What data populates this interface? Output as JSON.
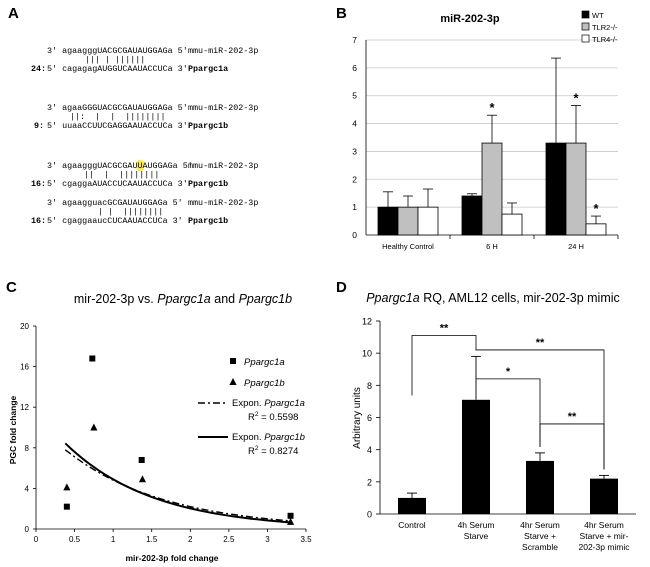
{
  "panels": {
    "a": "A",
    "b": "B",
    "c": "C",
    "d": "D"
  },
  "alignments": [
    {
      "top": "3' agaagggUACGCGAUAUGGAGa 5'",
      "mirna": "mmu-miR-202-3p",
      "pairs": "||| | ||||||",
      "score": "24:",
      "bottom": "5' cagagagAUGGUCAAUACCUCa 3'",
      "gene": "Ppargc1a"
    },
    {
      "top": "3' agaaGGGUACGCGAUAUGGAGa 5'",
      "mirna": "mmu-miR-202-3p",
      "pairs": "||:  |  |  ||||||||",
      "score": "9:",
      "bottom": "5' uuaaCCUUCGAGGAAUACCUCa 3'",
      "gene": "Ppargc1b"
    },
    {
      "top": "3' agaagggUACGCGA",
      "hl": "U",
      "top_rest": "UAUGGAGa 5'",
      "mirna": "mmu-miR-202-3p",
      "pairs": "||  |  ||||||||",
      "score": "16:",
      "bottom": "5' cgaggaAUACCUCAAUACCUCa 3'",
      "gene": "Ppargc1b"
    },
    {
      "top": "3' agaagguacGCGAUAUGGAGa 5'",
      "mirna": "mmu-miR-202-3p",
      "pairs": "| |  ||||||||",
      "score": "16:",
      "bottom": "5' cgaggaaucCUCAAUACCUCa 3'",
      "gene": "Ppargc1b"
    }
  ],
  "chart_data": [
    {
      "id": "B",
      "type": "bar",
      "title": "miR-202-3p",
      "categories": [
        "Healthy Control",
        "6 H",
        "24 H"
      ],
      "series": [
        {
          "name": "WT",
          "color": "#000000",
          "values": [
            1.0,
            1.4,
            3.3
          ],
          "err": [
            0.55,
            0.08,
            3.05
          ]
        },
        {
          "name": "TLR2-/-",
          "color": "#c0c0c0",
          "values": [
            1.0,
            3.3,
            3.3
          ],
          "err": [
            0.4,
            1.0,
            1.35
          ]
        },
        {
          "name": "TLR4-/-",
          "color": "#ffffff",
          "values": [
            1.0,
            0.75,
            0.4
          ],
          "err": [
            0.65,
            0.4,
            0.28
          ]
        }
      ],
      "significance": [
        {
          "category": 1,
          "series": 1,
          "label": "*"
        },
        {
          "category": 2,
          "series": 1,
          "label": "*"
        },
        {
          "category": 2,
          "series": 2,
          "label": "*"
        }
      ],
      "ylim": [
        0,
        7
      ],
      "yticks": [
        "0",
        "1",
        "2",
        "3",
        "4",
        "5",
        "6",
        "7"
      ],
      "legend_position": "top-right"
    },
    {
      "id": "C",
      "type": "scatter",
      "title_parts": [
        "mir-202-3p vs. ",
        "Ppargc1a",
        " and ",
        "Ppargc1b"
      ],
      "xlabel": "mir-202-3p fold change",
      "ylabel": "PGC fold change",
      "xlim": [
        0,
        3.5
      ],
      "ylim": [
        0,
        20
      ],
      "xticks": [
        "0",
        "0.5",
        "1",
        "1.5",
        "2",
        "2.5",
        "3",
        "3.5"
      ],
      "yticks": [
        "0",
        "4",
        "8",
        "12",
        "16",
        "20"
      ],
      "series": [
        {
          "name": "Ppargc1a",
          "marker": "square",
          "points": [
            [
              0.4,
              2.2
            ],
            [
              0.73,
              16.8
            ],
            [
              1.37,
              6.8
            ],
            [
              3.3,
              1.3
            ]
          ]
        },
        {
          "name": "Ppargc1b",
          "marker": "triangle",
          "points": [
            [
              0.4,
              4.1
            ],
            [
              0.75,
              10.0
            ],
            [
              1.38,
              4.9
            ],
            [
              3.3,
              0.7
            ]
          ]
        }
      ],
      "trendlines": [
        {
          "legend_prefix": "Expon. ",
          "name": "Ppargc1a",
          "style": "dash-dot",
          "a": 10.5,
          "b": -0.78,
          "r2_label": "R",
          "r2_sup": "2",
          "r2_value": " = 0.5598"
        },
        {
          "legend_prefix": "Expon. ",
          "name": "Ppargc1b",
          "style": "solid",
          "a": 11.8,
          "b": -0.88,
          "r2_label": "R",
          "r2_sup": "2",
          "r2_value": " = 0.8274"
        }
      ],
      "trend_x_range": [
        0.38,
        3.3
      ]
    },
    {
      "id": "D",
      "type": "bar",
      "title_italic": "Ppargc1a",
      "title_rest": " RQ, AML12 cells, mir-202-3p mimic",
      "ylabel": "Arbitrary units",
      "ylim": [
        0,
        12
      ],
      "yticks": [
        "0",
        "2",
        "4",
        "6",
        "8",
        "10",
        "12"
      ],
      "categories": [
        [
          "Control"
        ],
        [
          "4h Serum",
          "Starve"
        ],
        [
          "4hr Serum",
          "Starve +",
          "Scramble"
        ],
        [
          "4hr Serum",
          "Starve + mir-",
          "202-3p mimic"
        ]
      ],
      "values": [
        1.0,
        7.1,
        3.3,
        2.2
      ],
      "err": [
        0.3,
        2.7,
        0.5,
        0.2
      ],
      "color": "#000000",
      "brackets": [
        {
          "from": 0,
          "to": 1,
          "level": 11.1,
          "label": "**"
        },
        {
          "from": 1,
          "to": 3,
          "level": 10.2,
          "label": "**"
        },
        {
          "from": 1,
          "to": 2,
          "level": 8.4,
          "label": "*"
        },
        {
          "from": 2,
          "to": 3,
          "level": 5.6,
          "label": "**"
        }
      ]
    }
  ]
}
